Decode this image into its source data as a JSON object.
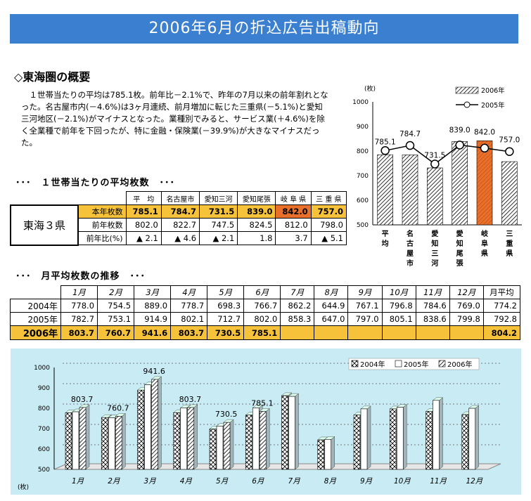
{
  "title": "2006年6月の折込広告出稿動向",
  "section_title": "◇東海圏の概要",
  "body_text": "　１世帯当たりの平均は785.1枚。前年比－2.1%で、昨年の7月以来の前年割れとなった。名古屋市内(－4.6%)は3ヶ月連続、前月増加に転じた三重県(－5.1%)と愛知三河地区(－2.1%)がマイナスとなった。業種別でみると、サービス業(＋4.6%)を除く全業種で前年を下回ったが、特に金融・保険業(－39.9%)が大きなマイナスだった。",
  "table1": {
    "heading": "･･･　１世帯当たりの平均枚数　･･･",
    "region": "東海３県",
    "columns": [
      "平　均",
      "名古屋市",
      "愛知三河",
      "愛知尾張",
      "岐 阜 県",
      "三 重 県"
    ],
    "rows": [
      {
        "label": "本年枚数",
        "values": [
          "785.1",
          "784.7",
          "731.5",
          "839.0",
          "842.0",
          "757.0"
        ]
      },
      {
        "label": "前年枚数",
        "values": [
          "802.0",
          "822.7",
          "747.5",
          "824.5",
          "812.0",
          "798.0"
        ]
      },
      {
        "label": "前年比(%)",
        "values": [
          "▲ 2.1",
          "▲ 4.6",
          "▲ 2.1",
          "1.8",
          "3.7",
          "▲ 5.1"
        ]
      }
    ]
  },
  "table2": {
    "heading": "･･･　月平均枚数の推移　･･･",
    "months": [
      "1月",
      "2月",
      "3月",
      "4月",
      "5月",
      "6月",
      "7月",
      "8月",
      "9月",
      "10月",
      "11月",
      "12月"
    ],
    "avg_label": "月平均",
    "rows": [
      {
        "label": "2004年",
        "values": [
          "778.0",
          "754.5",
          "889.0",
          "778.7",
          "698.3",
          "766.7",
          "862.2",
          "644.9",
          "767.1",
          "796.8",
          "784.6",
          "769.0"
        ],
        "avg": "774.2"
      },
      {
        "label": "2005年",
        "values": [
          "782.7",
          "753.1",
          "914.9",
          "802.1",
          "712.7",
          "802.0",
          "858.3",
          "647.0",
          "797.0",
          "805.1",
          "838.6",
          "799.8"
        ],
        "avg": "792.8"
      },
      {
        "label": "2006年",
        "values": [
          "803.7",
          "760.7",
          "941.6",
          "803.7",
          "730.5",
          "785.1",
          "",
          "",
          "",
          "",
          "",
          ""
        ],
        "avg": "804.2"
      }
    ]
  },
  "chart_data": [
    {
      "type": "bar",
      "unit_label": "(枚)",
      "categories": [
        "平均",
        "名古屋市",
        "愛知三河",
        "愛知尾張",
        "岐阜県",
        "三重県"
      ],
      "series": [
        {
          "name": "2006年",
          "type": "bar",
          "values": [
            785.1,
            784.7,
            731.5,
            839.0,
            842.0,
            757.0
          ]
        },
        {
          "name": "2005年",
          "type": "line",
          "values": [
            802.0,
            822.7,
            747.5,
            824.5,
            812.0,
            798.0
          ]
        }
      ],
      "data_labels": [
        "785.1",
        "784.7",
        "731.5",
        "839.0",
        "842.0",
        "757.0"
      ],
      "ylim": [
        500,
        1000
      ],
      "yticks": [
        500,
        600,
        700,
        800,
        900,
        1000
      ],
      "legend": "top-right",
      "highlight_index": 4,
      "colors": {
        "bar": "#ffffff",
        "hatch": "#000000",
        "highlight": "#e8702a",
        "line": "#000000"
      }
    },
    {
      "type": "bar",
      "unit_label": "(枚)",
      "categories": [
        "1月",
        "2月",
        "3月",
        "4月",
        "5月",
        "6月",
        "7月",
        "8月",
        "9月",
        "10月",
        "11月",
        "12月"
      ],
      "series": [
        {
          "name": "2004年",
          "values": [
            778.0,
            754.5,
            889.0,
            778.7,
            698.3,
            766.7,
            862.2,
            644.9,
            767.1,
            796.8,
            784.6,
            769.0
          ]
        },
        {
          "name": "2005年",
          "values": [
            782.7,
            753.1,
            914.9,
            802.1,
            712.7,
            802.0,
            858.3,
            647.0,
            797.0,
            805.1,
            838.6,
            799.8
          ]
        },
        {
          "name": "2006年",
          "values": [
            803.7,
            760.7,
            941.6,
            803.7,
            730.5,
            785.1,
            null,
            null,
            null,
            null,
            null,
            null
          ]
        }
      ],
      "data_labels": [
        "803.7",
        "760.7",
        "941.6",
        "803.7",
        "730.5",
        "785.1"
      ],
      "ylim": [
        500,
        1000
      ],
      "yticks": [
        500,
        600,
        700,
        800,
        900,
        1000
      ],
      "legend": "top-right",
      "grid": true,
      "colors": {
        "background": "#c9ebf3"
      }
    }
  ]
}
